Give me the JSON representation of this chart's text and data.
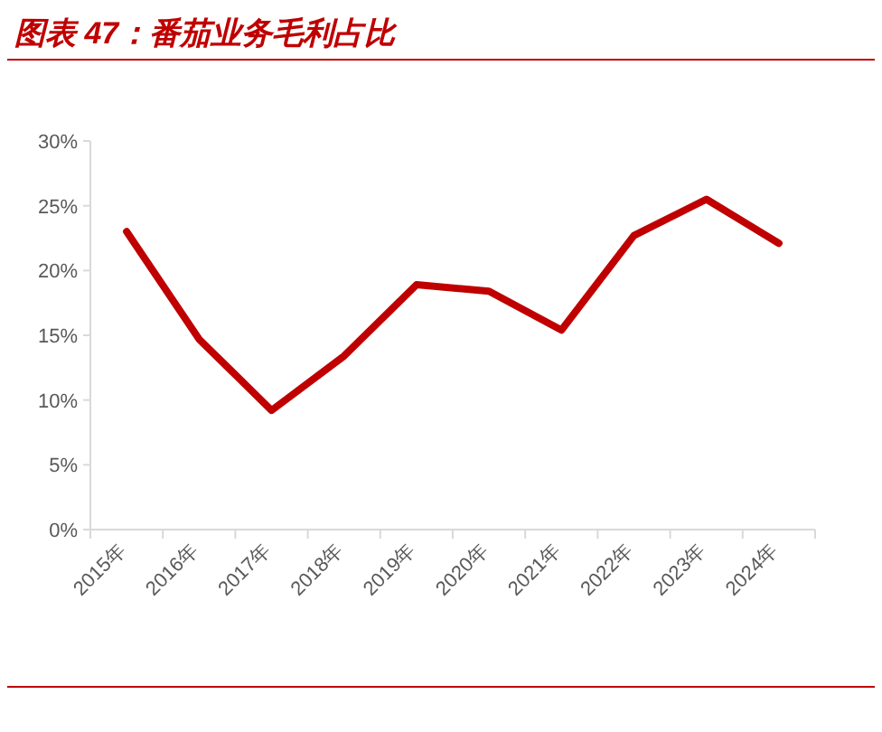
{
  "chart_data": {
    "type": "line",
    "title": "图表 47：番茄业务毛利占比",
    "categories": [
      "2015年",
      "2016年",
      "2017年",
      "2018年",
      "2019年",
      "2020年",
      "2021年",
      "2022年",
      "2023年",
      "2024年"
    ],
    "series": [
      {
        "color": "#c00000",
        "values": [
          23.0,
          14.7,
          9.2,
          13.4,
          18.9,
          18.4,
          15.4,
          22.7,
          25.5,
          22.1
        ]
      }
    ],
    "ylim": [
      0,
      30
    ],
    "yticks": [
      {
        "value": 0,
        "label": "0%"
      },
      {
        "value": 5,
        "label": "5%"
      },
      {
        "value": 10,
        "label": "10%"
      },
      {
        "value": 15,
        "label": "15%"
      },
      {
        "value": 20,
        "label": "20%"
      },
      {
        "value": 25,
        "label": "25%"
      },
      {
        "value": 30,
        "label": "30%"
      }
    ],
    "line_style": "solid"
  }
}
